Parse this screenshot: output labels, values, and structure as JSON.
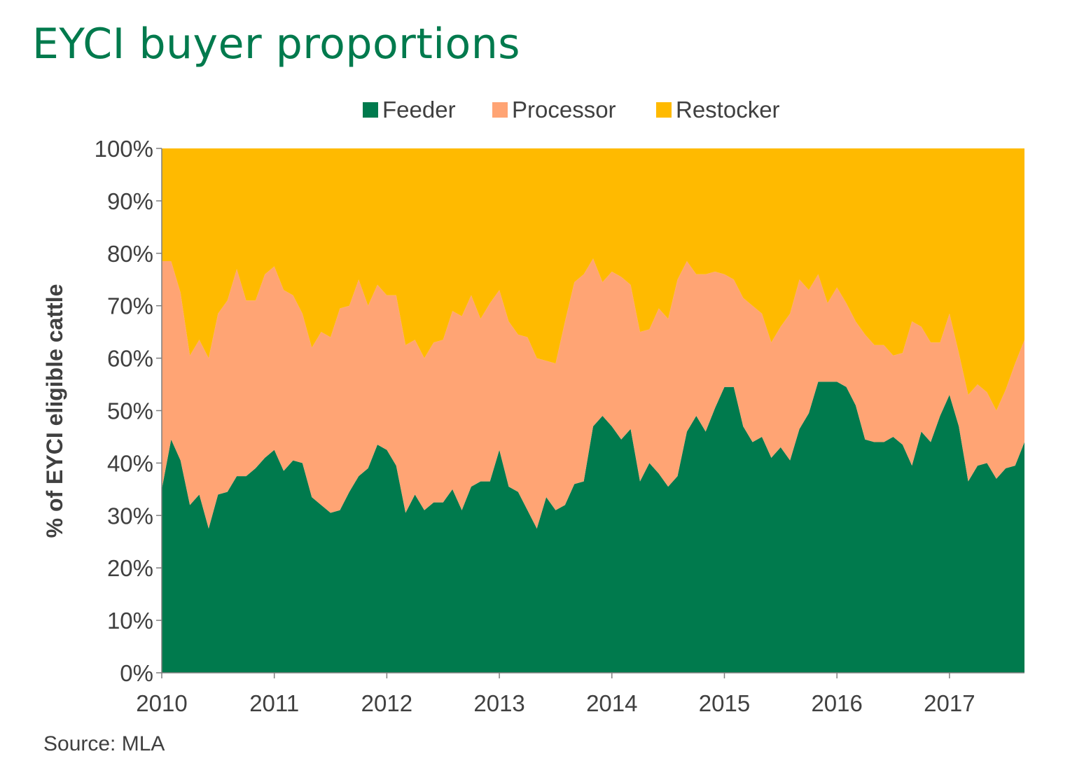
{
  "page": {
    "title": "EYCI buyer proportions",
    "source": "Source:  MLA"
  },
  "colors": {
    "feeder": "#007A4D",
    "processor": "#FFA474",
    "restocker": "#FFBA00",
    "title": "#007A4D",
    "axis": "#404040"
  },
  "chart_data": {
    "type": "area",
    "stacked": true,
    "title": "",
    "xlabel": "",
    "ylabel": "% of EYCI eligible cattle",
    "ylim": [
      0,
      100
    ],
    "yticks": [
      "0%",
      "10%",
      "20%",
      "30%",
      "40%",
      "50%",
      "60%",
      "70%",
      "80%",
      "90%",
      "100%"
    ],
    "xticks": [
      "2010",
      "2011",
      "2012",
      "2013",
      "2014",
      "2015",
      "2016",
      "2017"
    ],
    "legend_position": "top",
    "x_start": "2010-01",
    "x_end": "2017-09",
    "series": [
      {
        "name": "Feeder",
        "values": [
          35,
          44.5,
          40.5,
          32,
          34,
          27.5,
          34,
          34.5,
          37.5,
          37.5,
          39,
          41,
          42.5,
          38.5,
          40.5,
          40,
          33.5,
          32,
          30.5,
          31,
          34.5,
          37.5,
          39,
          43.5,
          42.5,
          39.5,
          30.5,
          34,
          31,
          32.5,
          32.5,
          35,
          31,
          35.5,
          36.5,
          36.5,
          42.5,
          35.5,
          34.5,
          31,
          27.5,
          33.5,
          31,
          32,
          36,
          36.5,
          47,
          49,
          47,
          44.5,
          46.5,
          36.5,
          40,
          38,
          35.5,
          37.5,
          46,
          49,
          46,
          50.5,
          54.5,
          54.5,
          47,
          44,
          45,
          41,
          43,
          40.5,
          46.5,
          49.5,
          55.5,
          55.5,
          55.5,
          54.5,
          51,
          44.5,
          44,
          44,
          45,
          43.5,
          39.5,
          46,
          44,
          49,
          53,
          47,
          36.5,
          39.5,
          40,
          37,
          39,
          39.5,
          44
        ]
      },
      {
        "name": "Processor",
        "values": [
          43.5,
          34,
          32,
          28.5,
          29.5,
          32.5,
          34.5,
          36.5,
          39.5,
          33.5,
          32,
          35,
          35,
          34.5,
          31.5,
          28.5,
          28.5,
          33,
          33.5,
          38.5,
          35.5,
          37.5,
          31,
          30.5,
          29.5,
          32.5,
          32,
          29.5,
          29,
          30.5,
          31,
          34,
          37,
          36.5,
          31,
          34,
          30.5,
          31.5,
          30,
          33,
          32.5,
          26,
          28,
          35,
          38.5,
          39.5,
          32,
          25.5,
          29.5,
          31,
          27.5,
          28.5,
          25.5,
          31.5,
          32,
          37.5,
          32.5,
          27,
          30,
          26,
          21.5,
          20.5,
          24.5,
          26,
          23.5,
          22,
          23,
          28,
          28.5,
          23.5,
          20.5,
          15,
          18,
          16,
          16,
          20,
          18.5,
          18.5,
          15.5,
          17.5,
          27.5,
          20,
          19,
          14,
          15.5,
          14,
          16.5,
          15.5,
          13.5,
          13,
          15,
          19.5,
          19.5
        ]
      },
      {
        "name": "Restocker",
        "values": [
          21.5,
          21.5,
          27.5,
          39.5,
          36.5,
          40,
          31.5,
          29,
          23,
          29,
          29,
          24,
          22.5,
          27,
          28,
          31.5,
          38,
          35,
          36,
          30.5,
          30,
          25,
          30,
          26,
          28,
          28,
          37.5,
          36.5,
          40,
          37,
          36.5,
          31,
          32,
          28,
          32.5,
          29.5,
          27,
          33,
          35.5,
          36,
          40,
          40.5,
          41,
          33,
          25.5,
          24,
          21,
          25.5,
          23.5,
          24.5,
          26,
          35,
          34.5,
          30.5,
          32.5,
          25,
          21.5,
          24,
          24,
          23.5,
          24,
          25,
          28.5,
          30,
          31.5,
          37,
          34,
          31.5,
          25,
          27,
          24,
          29.5,
          26.5,
          29.5,
          33,
          35.5,
          37.5,
          37.5,
          39.5,
          39,
          33,
          34,
          37,
          37,
          31.5,
          39,
          47,
          45,
          46.5,
          50,
          46,
          41,
          36.5
        ]
      }
    ]
  }
}
